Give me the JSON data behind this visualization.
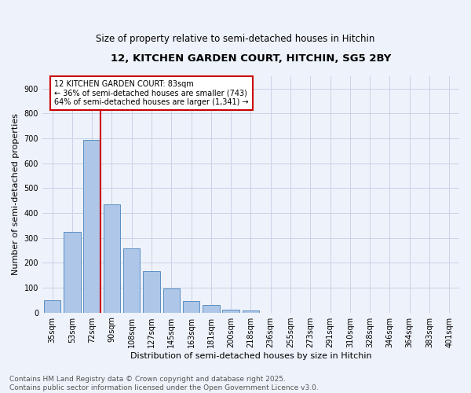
{
  "title": "12, KITCHEN GARDEN COURT, HITCHIN, SG5 2BY",
  "subtitle": "Size of property relative to semi-detached houses in Hitchin",
  "xlabel": "Distribution of semi-detached houses by size in Hitchin",
  "ylabel": "Number of semi-detached properties",
  "bar_labels": [
    "35sqm",
    "53sqm",
    "72sqm",
    "90sqm",
    "108sqm",
    "127sqm",
    "145sqm",
    "163sqm",
    "181sqm",
    "200sqm",
    "218sqm",
    "236sqm",
    "255sqm",
    "273sqm",
    "291sqm",
    "310sqm",
    "328sqm",
    "346sqm",
    "364sqm",
    "383sqm",
    "401sqm"
  ],
  "bar_values": [
    50,
    325,
    693,
    435,
    258,
    165,
    96,
    46,
    30,
    10,
    8,
    0,
    0,
    0,
    0,
    0,
    0,
    0,
    0,
    0,
    0
  ],
  "bar_color": "#aec6e8",
  "bar_edge_color": "#5a8fc2",
  "property_bar_index": 2,
  "vline_color": "#cc0000",
  "annotation_text": "12 KITCHEN GARDEN COURT: 83sqm\n← 36% of semi-detached houses are smaller (743)\n64% of semi-detached houses are larger (1,341) →",
  "annotation_box_color": "#ffffff",
  "annotation_box_edge": "#cc0000",
  "footer_text": "Contains HM Land Registry data © Crown copyright and database right 2025.\nContains public sector information licensed under the Open Government Licence v3.0.",
  "ylim": [
    0,
    950
  ],
  "yticks": [
    0,
    100,
    200,
    300,
    400,
    500,
    600,
    700,
    800,
    900
  ],
  "background_color": "#eef2fa",
  "grid_color": "#c8d4e8",
  "title_fontsize": 9.5,
  "subtitle_fontsize": 8.5,
  "xlabel_fontsize": 8,
  "ylabel_fontsize": 8,
  "tick_fontsize": 7,
  "annotation_fontsize": 7,
  "footer_fontsize": 6.5
}
